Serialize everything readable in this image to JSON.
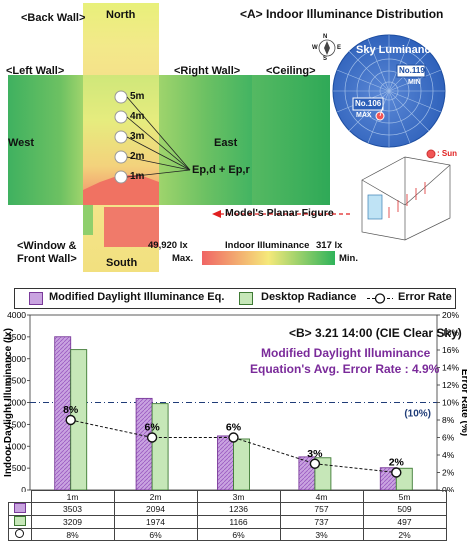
{
  "panel_a": {
    "title": "<A> Indoor Illuminance Distribution",
    "labels": {
      "back_wall": "<Back Wall>",
      "north": "North",
      "left_wall": "<Left Wall>",
      "right_wall": "<Right Wall>",
      "ceiling": "<Ceiling>",
      "west": "West",
      "east": "East",
      "window_front_1": "<Window &",
      "window_front_2": "Front Wall>",
      "south": "South",
      "ep": "Ep,d + Ep,r",
      "planar_figure": "Model's Planar Figure"
    },
    "distances": [
      "5m",
      "4m",
      "3m",
      "2m",
      "1m"
    ],
    "sky": {
      "title": "Sky Luminance",
      "min_no": "No.119",
      "min_label": "MIN",
      "max_no": "No.106",
      "max_label": "MAX",
      "sun_legend": ": Sun",
      "compass": [
        "N",
        "E",
        "S",
        "W"
      ]
    },
    "scale": {
      "max_value": "49,920 lx",
      "title": "Indoor Illuminance",
      "min_value": "317 lx",
      "max_label": "Max.",
      "min_label": "Min."
    },
    "colors": {
      "max": "#f06565",
      "mid": "#f5e97a",
      "min": "#2fb35a"
    }
  },
  "panel_b": {
    "title": "<B> 3.21 14:00 (CIE Clear Sky)",
    "sub1": "Modified Daylight Illuminance",
    "sub2": "Equation's Avg. Error Rate : 4.9%",
    "ref_label": "(10%)",
    "legend": {
      "s1": "Modified Daylight Illuminance Eq.",
      "s2": "Desktop Radiance",
      "s3": "Error Rate"
    }
  },
  "chart_data": {
    "type": "bar",
    "title": "<B> 3.21 14:00 (CIE Clear Sky)",
    "categories": [
      "1m",
      "2m",
      "3m",
      "4m",
      "5m"
    ],
    "series": [
      {
        "name": "Modified Daylight Illuminance Eq.",
        "values": [
          3503,
          2094,
          1236,
          757,
          509
        ],
        "color": "#c9a3e0",
        "axis": "left"
      },
      {
        "name": "Desktop Radiance",
        "values": [
          3209,
          1974,
          1166,
          737,
          497
        ],
        "color": "#c6e7b8",
        "axis": "left"
      },
      {
        "name": "Error Rate",
        "values": [
          8,
          6,
          6,
          3,
          2
        ],
        "unit": "%",
        "type": "line",
        "axis": "right"
      }
    ],
    "point_labels": [
      "8%",
      "6%",
      "6%",
      "3%",
      "2%"
    ],
    "ylabel": "Indoor Daylight Illuminance (lx)",
    "ylim": [
      0,
      4000
    ],
    "yticks": [
      "0",
      "500",
      "1000",
      "1500",
      "2000",
      "2500",
      "3000",
      "3500",
      "4000"
    ],
    "y2label": "Error Rate (%)",
    "y2lim": [
      0,
      20
    ],
    "y2ticks": [
      "0%",
      "2%",
      "4%",
      "6%",
      "8%",
      "10%",
      "12%",
      "14%",
      "16%",
      "18%",
      "20%"
    ],
    "reference_line": 10,
    "table_rows": [
      [
        "3503",
        "2094",
        "1236",
        "757",
        "509"
      ],
      [
        "3209",
        "1974",
        "1166",
        "737",
        "497"
      ],
      [
        "8%",
        "6%",
        "6%",
        "3%",
        "2%"
      ]
    ],
    "grid": false,
    "legend": "top"
  }
}
